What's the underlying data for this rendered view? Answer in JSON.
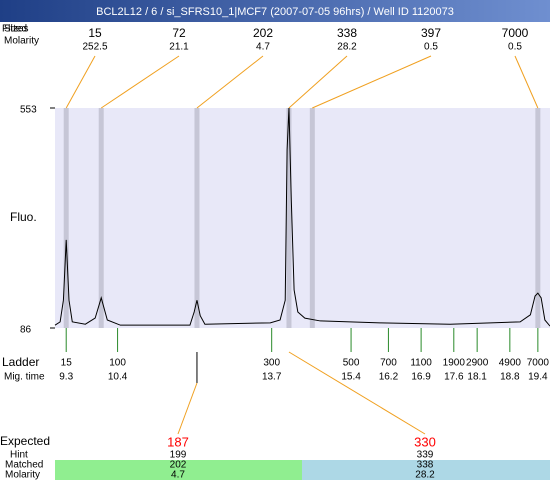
{
  "title": "BCL2L12 / 6 / si_SFRS10_1|MCF7 (2007-07-05 96hrs) / Well ID 1120073",
  "fitted": {
    "labels": [
      "Fitted",
      "Sizes"
    ],
    "molarity_label": "Molarity",
    "peaks": [
      {
        "size": 15,
        "molarity": 252.5,
        "time": 9.3
      },
      {
        "size": 72,
        "molarity": 21.1,
        "time": 10.05
      },
      {
        "size": 202,
        "molarity": 4.7,
        "time": 12.1
      },
      {
        "size": 338,
        "molarity": 28.2,
        "time": 14.07
      },
      {
        "size": 397,
        "molarity": 0.5,
        "time": 14.57
      },
      {
        "size": 7000,
        "molarity": 0.5,
        "time": 19.4
      }
    ]
  },
  "chart_data": {
    "type": "line",
    "ylabel": "Fluo.",
    "xlim": [
      9.06,
      19.66
    ],
    "ylim": [
      86,
      553
    ],
    "yticks": [
      86,
      553
    ],
    "color": "#000000",
    "x": [
      9.06,
      9.17,
      9.24,
      9.3,
      9.36,
      9.43,
      9.71,
      9.92,
      10.05,
      10.18,
      10.46,
      11.95,
      12.04,
      12.1,
      12.17,
      12.27,
      13.67,
      13.88,
      13.99,
      14.03,
      14.07,
      14.12,
      14.18,
      14.26,
      14.41,
      14.74,
      16.02,
      17.52,
      19.02,
      19.24,
      19.34,
      19.4,
      19.47,
      19.55,
      19.66
    ],
    "values": [
      92,
      99,
      145,
      273,
      145,
      99,
      94,
      107,
      150,
      103,
      92,
      92,
      120,
      145,
      112,
      94,
      97,
      103,
      145,
      464,
      553,
      358,
      167,
      120,
      107,
      101,
      97,
      94,
      99,
      114,
      154,
      160,
      150,
      103,
      90
    ]
  },
  "ladder": {
    "label": "Ladder",
    "time_label": "Mig. time",
    "sizes": [
      15,
      100,
      300,
      500,
      700,
      1100,
      1900,
      2900,
      4900,
      7000
    ],
    "times": [
      9.3,
      10.4,
      13.7,
      15.4,
      16.2,
      16.9,
      17.6,
      18.1,
      18.8,
      19.4
    ]
  },
  "expected": {
    "label": "Expected",
    "hint_label": "Hint",
    "matched_label": "Matched",
    "molarity_label": "Molarity",
    "columns": [
      {
        "expected": 187,
        "hint": 199,
        "matched": 202,
        "molarity": 4.7
      },
      {
        "expected": 330,
        "hint": 339,
        "matched": 338,
        "molarity": 28.2
      }
    ]
  }
}
